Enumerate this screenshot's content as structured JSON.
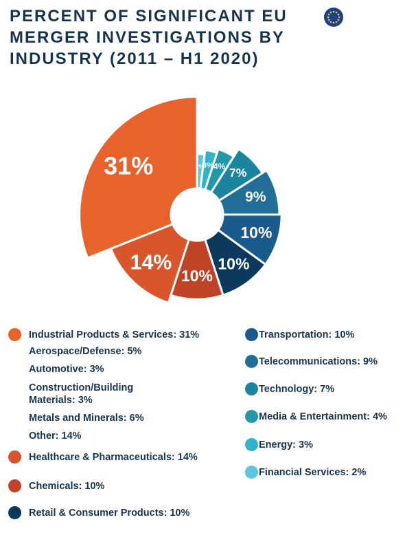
{
  "chart_data": {
    "type": "pie",
    "title": "PERCENT OF SIGNIFICANT EU MERGER INVESTIGATIONS BY INDUSTRY (2011 – H1 2020)",
    "categories": [
      "Industrial Products & Services: 31%",
      "Healthcare & Pharmaceuticals: 14%",
      "Chemicals: 10%",
      "Retail & Consumer Products: 10%",
      "Transportation: 10%",
      "Telecommunications: 9%",
      "Technology: 7%",
      "Media & Entertainment: 4%",
      "Energy: 3%",
      "Financial Services: 2%"
    ],
    "values": [
      31,
      14,
      10,
      10,
      10,
      9,
      7,
      4,
      3,
      2
    ],
    "value_labels": [
      "31%",
      "14%",
      "10%",
      "10%",
      "10%",
      "9%",
      "7%",
      "4%",
      "3%",
      "2%"
    ],
    "colors": [
      "#e8622c",
      "#d9552b",
      "#bf4327",
      "#0d3a5c",
      "#1a5a8c",
      "#216f99",
      "#1b849e",
      "#2298a8",
      "#31b4c8",
      "#5bc6dc"
    ],
    "sub_items": [
      "Aerospace/Defense: 5%",
      "Automotive: 3%",
      "Construction/Building Materials: 3%",
      "Metals and Minerals: 6%",
      "Other: 14%"
    ]
  }
}
